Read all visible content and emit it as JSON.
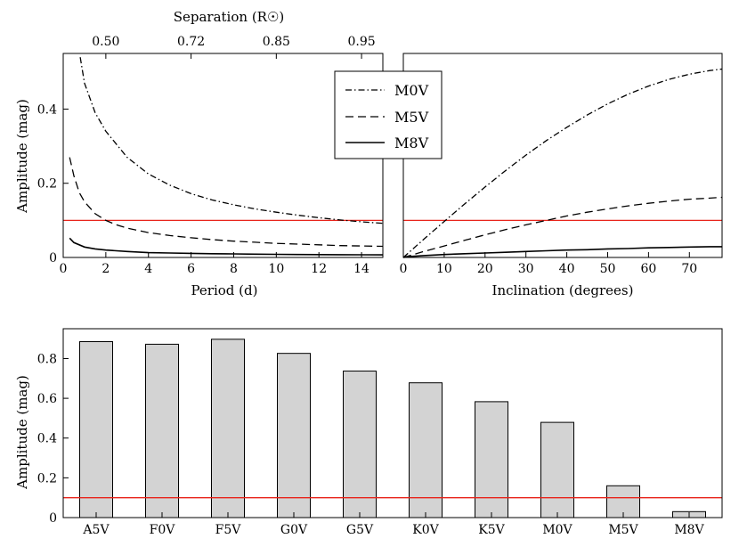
{
  "figure": {
    "background": "#ffffff",
    "threshold_color": "#e8231a",
    "bar_fill": "#d3d3d3"
  },
  "chart_data": [
    {
      "id": "period",
      "type": "line",
      "xlabel": "Period (d)",
      "ylabel": "Amplitude (mag)",
      "xlim": [
        0,
        15
      ],
      "ylim": [
        0,
        0.55
      ],
      "xticks": [
        0,
        2,
        4,
        6,
        8,
        10,
        12,
        14
      ],
      "yticks": [
        0,
        0.2,
        0.4
      ],
      "ytick_labels": [
        "0",
        "0.2",
        "0.4"
      ],
      "top_axis": {
        "label": "Separation (R☉)",
        "ticks": [
          {
            "at": 2,
            "label": "0.50"
          },
          {
            "at": 6,
            "label": "0.72"
          },
          {
            "at": 10,
            "label": "0.85"
          },
          {
            "at": 14,
            "label": "0.95"
          }
        ]
      },
      "threshold": 0.1,
      "series": [
        {
          "name": "M0V",
          "style": "dashdot",
          "x": [
            0.8,
            1,
            1.5,
            2,
            3,
            4,
            5,
            6,
            7,
            8,
            9,
            10,
            11,
            12,
            13,
            14,
            15
          ],
          "y": [
            0.54,
            0.47,
            0.39,
            0.34,
            0.27,
            0.225,
            0.195,
            0.172,
            0.155,
            0.142,
            0.131,
            0.122,
            0.114,
            0.107,
            0.101,
            0.096,
            0.092
          ]
        },
        {
          "name": "M5V",
          "style": "dashed",
          "x": [
            0.3,
            0.5,
            0.75,
            1,
            1.5,
            2,
            2.5,
            3,
            4,
            5,
            6,
            7,
            8,
            9,
            10,
            11,
            12,
            13,
            14,
            15
          ],
          "y": [
            0.27,
            0.22,
            0.175,
            0.15,
            0.118,
            0.1,
            0.088,
            0.079,
            0.067,
            0.059,
            0.053,
            0.048,
            0.044,
            0.041,
            0.038,
            0.036,
            0.034,
            0.032,
            0.031,
            0.03
          ]
        },
        {
          "name": "M8V",
          "style": "solid",
          "x": [
            0.3,
            0.5,
            1,
            1.5,
            2,
            3,
            4,
            5,
            6,
            7,
            8,
            9,
            10,
            11,
            12,
            13,
            14,
            15
          ],
          "y": [
            0.052,
            0.04,
            0.028,
            0.023,
            0.02,
            0.016,
            0.013,
            0.012,
            0.011,
            0.01,
            0.0095,
            0.009,
            0.0085,
            0.008,
            0.0078,
            0.0075,
            0.0072,
            0.007
          ]
        }
      ]
    },
    {
      "id": "inclination",
      "type": "line",
      "xlabel": "Inclination (degrees)",
      "ylabel": "",
      "xlim": [
        0,
        78
      ],
      "ylim": [
        0,
        0.55
      ],
      "xticks": [
        0,
        10,
        20,
        30,
        40,
        50,
        60,
        70
      ],
      "threshold": 0.1,
      "legend": {
        "location": "upper-left",
        "entries": [
          {
            "name": "M0V",
            "style": "dashdot"
          },
          {
            "name": "M5V",
            "style": "dashed"
          },
          {
            "name": "M8V",
            "style": "solid"
          }
        ]
      },
      "series": [
        {
          "name": "M0V",
          "style": "dashdot",
          "x": [
            0,
            5,
            10,
            15,
            20,
            25,
            30,
            35,
            40,
            45,
            50,
            55,
            60,
            65,
            70,
            75,
            78
          ],
          "y": [
            0,
            0.049,
            0.097,
            0.144,
            0.19,
            0.234,
            0.276,
            0.315,
            0.351,
            0.384,
            0.414,
            0.44,
            0.462,
            0.48,
            0.494,
            0.504,
            0.508
          ]
        },
        {
          "name": "M5V",
          "style": "dashed",
          "x": [
            0,
            5,
            10,
            15,
            20,
            25,
            30,
            35,
            40,
            45,
            50,
            55,
            60,
            65,
            70,
            75,
            78
          ],
          "y": [
            0,
            0.016,
            0.031,
            0.046,
            0.061,
            0.075,
            0.088,
            0.1,
            0.112,
            0.122,
            0.131,
            0.139,
            0.146,
            0.152,
            0.157,
            0.16,
            0.162
          ]
        },
        {
          "name": "M8V",
          "style": "solid",
          "x": [
            0,
            2,
            5,
            10,
            15,
            20,
            25,
            30,
            35,
            40,
            45,
            50,
            55,
            60,
            65,
            70,
            75,
            78
          ],
          "y": [
            0,
            0.003,
            0.005,
            0.008,
            0.01,
            0.012,
            0.014,
            0.016,
            0.018,
            0.02,
            0.021,
            0.023,
            0.024,
            0.026,
            0.027,
            0.028,
            0.029,
            0.029
          ]
        }
      ]
    },
    {
      "id": "spectral-type",
      "type": "bar",
      "xlabel": "",
      "ylabel": "Amplitude (mag)",
      "ylim": [
        0,
        0.95
      ],
      "yticks": [
        0,
        0.2,
        0.4,
        0.6,
        0.8
      ],
      "ytick_labels": [
        "0",
        "0.2",
        "0.4",
        "0.6",
        "0.8"
      ],
      "threshold": 0.1,
      "categories": [
        "A5V",
        "F0V",
        "F5V",
        "G0V",
        "G5V",
        "K0V",
        "K5V",
        "M0V",
        "M5V",
        "M8V"
      ],
      "values": [
        0.885,
        0.872,
        0.897,
        0.826,
        0.737,
        0.678,
        0.583,
        0.479,
        0.16,
        0.03
      ]
    }
  ]
}
